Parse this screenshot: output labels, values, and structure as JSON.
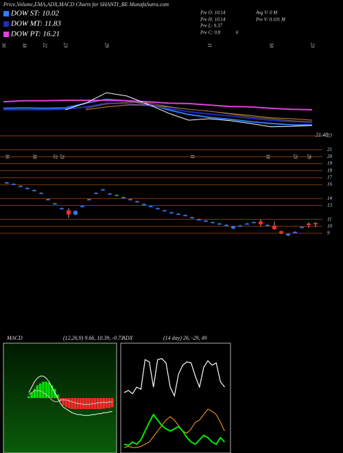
{
  "header": {
    "title": "Price,Volume,EMA,ADX,MACD Charts for SHANTI_BE MunafaSutra.com"
  },
  "info": {
    "left": [
      "Pre  O: 10.14",
      "Pre  H: 10.14",
      "Pre  L: 9.37",
      "Pre  C: 9.8"
    ],
    "right": [
      "Avg V: 0  M",
      "Pre  V: 0.101 M"
    ],
    "note": "6"
  },
  "chart_data": [
    {
      "type": "line",
      "categories": [
        "16",
        "18",
        "22",
        "23",
        null,
        "29",
        null,
        null,
        null,
        null,
        "11",
        null,
        null,
        "18",
        null,
        "23"
      ],
      "ylim": [
        21.48,
        41.48
      ],
      "yticks": [
        21.48
      ],
      "grid_color": "#c0601a",
      "series": [
        {
          "name": "DOW ST: 10.02",
          "color": "#2f7bff",
          "values": [
            27.3,
            27.4,
            27.3,
            27.4,
            28.4,
            29.2,
            28.9,
            28.2,
            27.0,
            26.0,
            25.4,
            25.0,
            24.5,
            24.1,
            23.8,
            23.8
          ]
        },
        {
          "name": "DOW MT: 11.83",
          "color": "#1c2fb8",
          "values": [
            27.0,
            27.0,
            27.0,
            27.1,
            27.6,
            28.4,
            28.3,
            27.9,
            27.3,
            26.6,
            26.1,
            25.7,
            25.2,
            24.8,
            24.5,
            24.4
          ]
        },
        {
          "name": "DOW PT: 16.21",
          "color": "#e040e0",
          "values": [
            28.7,
            28.9,
            28.9,
            29.0,
            29.0,
            29.0,
            28.9,
            28.7,
            28.4,
            28.3,
            28.0,
            27.7,
            27.6,
            27.3,
            27.1,
            27.0
          ]
        },
        {
          "color": "#ffffff",
          "values": [
            null,
            null,
            null,
            27.0,
            28.4,
            30.6,
            29.9,
            28.2,
            26.3,
            24.8,
            25.1,
            24.7,
            24.1,
            23.4,
            23.5,
            23.7
          ]
        },
        {
          "color": "#d98c2b",
          "values": [
            null,
            null,
            null,
            null,
            27.0,
            27.6,
            28.0,
            28.0,
            27.6,
            27.1,
            26.7,
            26.2,
            25.8,
            25.3,
            25.1,
            24.8
          ]
        },
        {
          "color": "#8b6a3b",
          "values": [
            null,
            null,
            null,
            null,
            27.3,
            28.2,
            28.6,
            28.5,
            27.7,
            27.1,
            26.7,
            26.1,
            25.5,
            25.1,
            24.7,
            24.4
          ]
        }
      ]
    },
    {
      "type": "candlestick",
      "categories": [
        "16",
        null,
        null,
        null,
        "18",
        null,
        null,
        "22",
        "23",
        null,
        null,
        null,
        null,
        null,
        null,
        null,
        null,
        null,
        null,
        null,
        null,
        null,
        null,
        null,
        null,
        null,
        null,
        "11",
        null,
        null,
        null,
        null,
        null,
        null,
        null,
        null,
        null,
        null,
        "18",
        null,
        null,
        null,
        "23",
        null,
        "29",
        null
      ],
      "open": [
        16.3,
        16.1,
        15.8,
        15.5,
        15.2,
        14.8,
        13.9,
        13.3,
        12.6,
        12.3,
        11.7,
        12.9,
        13.9,
        14.8,
        15.3,
        14.7,
        14.5,
        14.2,
        13.9,
        13.6,
        13.2,
        12.9,
        12.6,
        12.3,
        12.0,
        11.8,
        11.6,
        11.3,
        11.0,
        10.8,
        10.6,
        10.4,
        10.2,
        9.7,
        10.1,
        10.4,
        10.6,
        10.7,
        10.2,
        10.1,
        9.3,
        8.7,
        9.2,
        9.9,
        10.4,
        10.5
      ],
      "high": [
        16.4,
        16.2,
        15.9,
        15.6,
        15.3,
        14.9,
        14.0,
        13.4,
        12.7,
        12.6,
        12.3,
        13.0,
        14.0,
        14.9,
        15.4,
        14.8,
        14.6,
        14.3,
        14.0,
        13.7,
        13.3,
        13.0,
        12.7,
        12.4,
        12.1,
        11.9,
        11.7,
        11.4,
        11.1,
        10.9,
        10.7,
        10.5,
        10.3,
        10.1,
        10.2,
        10.5,
        10.7,
        11.0,
        10.3,
        10.7,
        9.4,
        9.0,
        9.3,
        10.0,
        10.6,
        10.6
      ],
      "low": [
        16.2,
        16.0,
        15.7,
        15.4,
        15.1,
        14.7,
        13.8,
        13.2,
        12.5,
        11.2,
        11.6,
        12.8,
        13.8,
        14.7,
        15.2,
        14.6,
        14.4,
        14.1,
        13.8,
        13.5,
        13.1,
        12.8,
        12.5,
        12.2,
        11.9,
        11.7,
        11.5,
        11.2,
        10.9,
        10.7,
        10.5,
        10.3,
        10.1,
        9.6,
        10.0,
        10.3,
        10.5,
        10.0,
        10.1,
        9.5,
        8.9,
        8.6,
        9.1,
        9.8,
        9.8,
        9.9
      ],
      "close": [
        16.3,
        16.1,
        15.8,
        15.5,
        15.2,
        14.8,
        13.9,
        13.3,
        12.6,
        11.7,
        12.2,
        12.9,
        13.9,
        14.8,
        15.3,
        14.7,
        14.5,
        14.2,
        13.9,
        13.6,
        13.2,
        12.9,
        12.6,
        12.3,
        12.0,
        11.8,
        11.6,
        11.3,
        11.0,
        10.8,
        10.6,
        10.4,
        10.2,
        10.0,
        10.1,
        10.4,
        10.6,
        10.3,
        10.2,
        9.6,
        9.0,
        8.9,
        9.2,
        9.9,
        10.2,
        10.3
      ],
      "up_color": "#2f7bff",
      "down_color": "#ff2a2a",
      "ylim": [
        8.5,
        23
      ],
      "yticks": [
        23,
        21,
        20,
        19,
        18,
        17,
        16,
        14,
        13,
        11,
        10,
        9
      ],
      "grid": true,
      "grid_color": "#8a3a10"
    },
    {
      "type": "macd",
      "title": "MACD",
      "subtitle": "(12,26,9) 9.66, 10.39, -0.73",
      "ylim": [
        -3,
        3
      ],
      "up_color": "#00dd00",
      "down_color": "#ff2a2a",
      "histogram": [
        0.1,
        0.3,
        0.5,
        0.7,
        0.8,
        0.9,
        0.9,
        0.85,
        0.7,
        0.5,
        0.2,
        -0.2,
        -0.4,
        -0.5,
        -0.55,
        -0.6,
        -0.6,
        -0.6,
        -0.6,
        -0.6,
        -0.6,
        -0.6,
        -0.6,
        -0.6,
        -0.6,
        -0.6,
        -0.58,
        -0.55,
        -0.55,
        -0.5
      ],
      "series": [
        {
          "color": "#ffffff",
          "values": [
            0.3,
            0.6,
            0.9,
            1.1,
            1.2,
            1.2,
            1.1,
            0.9,
            0.6,
            0.3,
            0.0,
            -0.3,
            -0.5,
            -0.6,
            -0.7,
            -0.8,
            -0.85,
            -0.9,
            -0.9,
            -0.95,
            -0.95,
            -0.95,
            -0.9,
            -0.9,
            -0.85,
            -0.85,
            -0.8,
            -0.8,
            -0.75,
            -0.73
          ]
        },
        {
          "color": "#c8c8c8",
          "values": [
            0.2,
            0.3,
            0.4,
            0.4,
            0.4,
            0.3,
            0.2,
            0.05,
            -0.1,
            -0.2,
            -0.2,
            -0.1,
            -0.1,
            -0.1,
            -0.15,
            -0.2,
            -0.25,
            -0.3,
            -0.3,
            -0.35,
            -0.35,
            -0.35,
            -0.3,
            -0.3,
            -0.25,
            -0.25,
            -0.22,
            -0.25,
            -0.2,
            -0.23
          ]
        }
      ]
    },
    {
      "type": "adx",
      "title": "ADX",
      "subtitle": "(14 day) 26, -29, 49",
      "ylim": [
        0,
        100
      ],
      "series": [
        {
          "color": "#ffffff",
          "values": [
            55,
            57,
            54,
            60,
            58,
            85,
            83,
            60,
            85,
            86,
            82,
            60,
            52,
            72,
            80,
            83,
            82,
            70,
            60,
            78,
            84,
            80,
            82,
            65,
            60
          ]
        },
        {
          "color": "#e08a1e",
          "values": [
            5,
            6,
            5,
            5,
            6,
            8,
            10,
            15,
            20,
            25,
            30,
            33,
            30,
            25,
            20,
            18,
            22,
            28,
            30,
            35,
            40,
            38,
            35,
            28,
            20
          ]
        },
        {
          "color": "#00ee00",
          "values": [
            8,
            7,
            10,
            8,
            12,
            20,
            28,
            35,
            30,
            25,
            22,
            20,
            22,
            24,
            20,
            14,
            10,
            8,
            12,
            16,
            14,
            10,
            8,
            14,
            10
          ]
        }
      ]
    }
  ]
}
